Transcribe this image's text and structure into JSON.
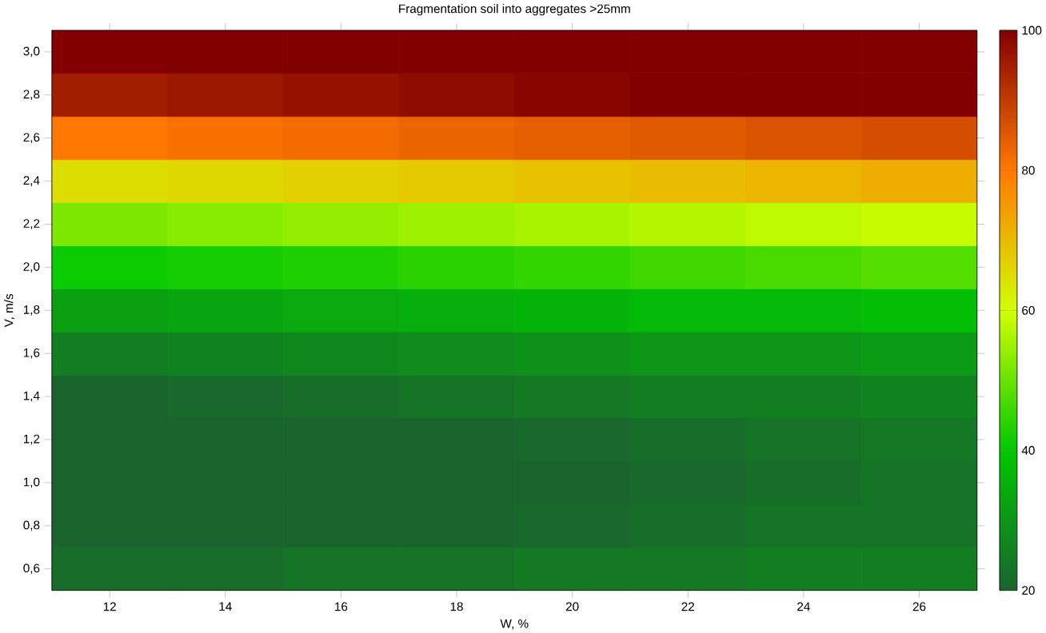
{
  "chart_data": {
    "type": "heatmap",
    "title": "Fragmentation soil into aggregates >25mm",
    "xlabel": "W, %",
    "ylabel": "V, m/s",
    "categories": [
      "12",
      "14",
      "16",
      "18",
      "20",
      "22",
      "24",
      "26"
    ],
    "y_categories": [
      "3,0",
      "2,8",
      "2,6",
      "2,4",
      "2,2",
      "2,0",
      "1,8",
      "1,6",
      "1,4",
      "1,2",
      "1,0",
      "0,8",
      "0,6"
    ],
    "cells": [
      [
        108,
        108,
        109,
        110,
        111,
        112,
        113,
        114
      ],
      [
        95,
        96,
        97,
        98,
        99,
        100,
        101,
        102
      ],
      [
        80,
        81,
        82,
        83,
        84,
        85,
        86,
        87
      ],
      [
        65,
        66,
        67,
        68,
        69,
        70,
        71,
        72
      ],
      [
        52,
        53,
        54,
        55,
        56,
        57,
        58,
        59
      ],
      [
        41,
        42,
        43,
        44,
        45,
        46,
        47,
        48
      ],
      [
        32,
        33,
        34,
        35,
        36,
        37,
        37,
        38
      ],
      [
        25,
        26,
        27,
        28,
        29,
        30,
        30,
        31
      ],
      [
        20,
        21,
        22,
        23,
        24,
        25,
        25,
        26
      ],
      [
        17,
        17,
        18,
        19,
        21,
        22,
        23,
        24
      ],
      [
        16,
        16,
        17,
        18,
        20,
        21,
        22,
        23
      ],
      [
        18,
        18,
        19,
        20,
        21,
        22,
        23,
        23
      ],
      [
        22,
        22,
        23,
        23,
        24,
        24,
        25,
        25
      ]
    ],
    "clim": [
      20,
      100
    ],
    "cticks": [
      20,
      40,
      60,
      80,
      100
    ]
  }
}
